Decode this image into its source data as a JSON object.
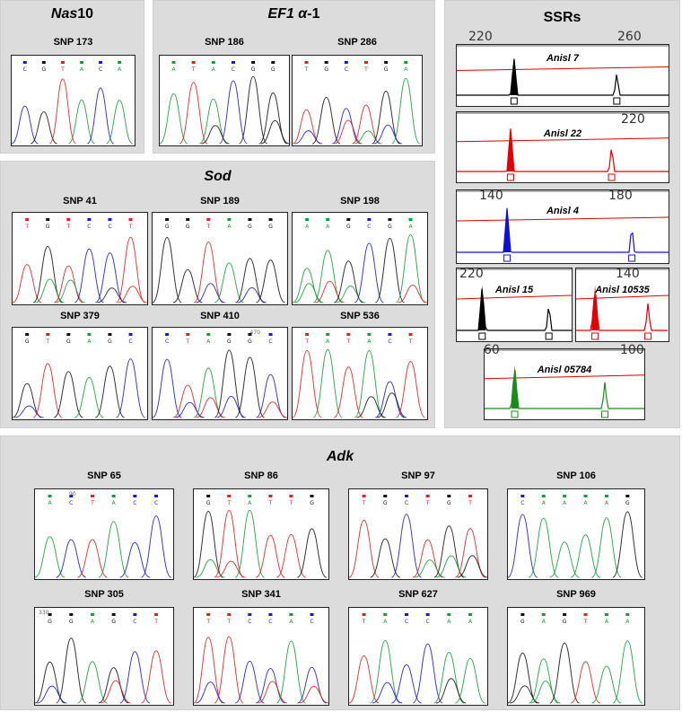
{
  "panels": {
    "nas10": {
      "title_italic": "Nas",
      "title_rest": "10",
      "snps": [
        "SNP 173"
      ]
    },
    "ef1": {
      "title_italic": "EF1 α",
      "title_rest": "-1",
      "snps": [
        "SNP 186",
        "SNP 286"
      ]
    },
    "sod": {
      "title": "Sod",
      "snps": [
        "SNP 41",
        "SNP 189",
        "SNP 198",
        "SNP 379",
        "SNP 410",
        "SNP 536"
      ]
    },
    "ssrs": {
      "title": "SSRs",
      "loci": [
        {
          "name": "Anisl 7",
          "scale": [
            "220",
            "260"
          ],
          "color": "#000000"
        },
        {
          "name": "Anisl 22",
          "scale": [
            "",
            "220"
          ],
          "color": "#e00000"
        },
        {
          "name": "Anisl 4",
          "scale": [
            "140",
            "180"
          ],
          "color": "#1010d0"
        },
        {
          "name": "Anisl 15",
          "scale": [
            "220",
            ""
          ],
          "color": "#000000"
        },
        {
          "name": "Anisl 10535",
          "scale": [
            "140",
            ""
          ],
          "color": "#e00000"
        },
        {
          "name": "Anisl 05784",
          "scale": [
            "60",
            "100"
          ],
          "color": "#1a8a1a"
        }
      ]
    },
    "adk": {
      "title": "Adk",
      "snps": [
        "SNP 65",
        "SNP 86",
        "SNP 97",
        "SNP 106",
        "SNP 305",
        "SNP 341",
        "SNP 627",
        "SNP 969"
      ]
    }
  },
  "position_tags": {
    "snp410": "470",
    "snp65": "90",
    "snp305": "330"
  },
  "base_colors": {
    "A": "#1a9a3a",
    "C": "#1a1acc",
    "G": "#111111",
    "T": "#dd2020"
  }
}
